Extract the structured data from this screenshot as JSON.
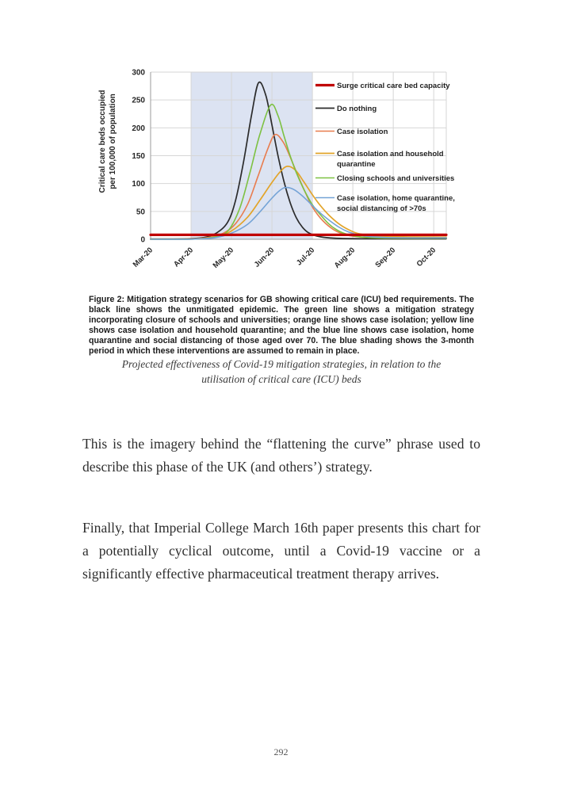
{
  "page": {
    "number": "292"
  },
  "figure_caption": "Figure 2: Mitigation strategy scenarios for GB showing critical care (ICU) bed requirements. The black line shows the unmitigated epidemic. The green line shows a mitigation strategy incorporating closure of schools and universities; orange line shows case isolation; yellow line shows case isolation and household quarantine; and the blue line shows case isolation, home quarantine and social distancing of those aged over 70. The blue shading shows the 3-month period in which these interventions are assumed to remain in place.",
  "italic_caption": {
    "line1": "Projected effectiveness of Covid-19 mitigation strategies, in relation to the",
    "line2": "utilisation of critical care (ICU) beds"
  },
  "paragraphs": {
    "p1": "This is the imagery behind the “flattening the curve” phrase used to describe this phase of the UK (and others’) strategy.",
    "p2": "Finally, that Imperial College March 16th paper presents this chart for a potentially cyclical outcome, until a Covid-19 vaccine or a significantly effective pharmaceutical treatment therapy arrives."
  },
  "chart_data": {
    "type": "line",
    "title": "",
    "ylabel_lines": [
      "Critical care beds occupied",
      "per 100,000 of population"
    ],
    "ylim": [
      0,
      300
    ],
    "y_ticks": [
      0,
      50,
      100,
      150,
      200,
      250,
      300
    ],
    "x_tick_labels": [
      "Mar-20",
      "Apr-20",
      "May-20",
      "Jun-20",
      "Jul-20",
      "Aug-20",
      "Sep-20",
      "Oct-20"
    ],
    "x_month_max": 7.31,
    "grid": true,
    "legend_position": "inside-right",
    "shading": {
      "from_month": 1,
      "to_month": 4,
      "color": "#DCE3F2"
    },
    "colors": {
      "grid": "#d6d6d6",
      "axis": "#9b9b9b",
      "tick_text": "#262626",
      "legend_text": "#1f1f1f"
    },
    "series": [
      {
        "key": "do-nothing",
        "color": "#2b2b2b",
        "line_width": 1.7,
        "legend_lines": [
          "Do nothing"
        ],
        "points": [
          [
            0,
            0.5
          ],
          [
            0.9,
            1
          ],
          [
            1.3,
            3
          ],
          [
            1.6,
            10
          ],
          [
            1.9,
            30
          ],
          [
            2.1,
            70
          ],
          [
            2.3,
            140
          ],
          [
            2.5,
            225
          ],
          [
            2.67,
            281
          ],
          [
            2.85,
            258
          ],
          [
            3.0,
            205
          ],
          [
            3.15,
            150
          ],
          [
            3.3,
            103
          ],
          [
            3.45,
            66
          ],
          [
            3.6,
            39
          ],
          [
            3.75,
            22
          ],
          [
            3.9,
            12
          ],
          [
            4.1,
            6
          ],
          [
            4.35,
            3
          ],
          [
            4.7,
            1.5
          ],
          [
            5.3,
            1
          ],
          [
            7.31,
            1
          ]
        ]
      },
      {
        "key": "case-isolation",
        "color": "#E87C4E",
        "line_width": 1.6,
        "legend_lines": [
          "Case isolation"
        ],
        "points": [
          [
            0,
            0
          ],
          [
            0.9,
            0.5
          ],
          [
            1.4,
            3
          ],
          [
            1.8,
            11
          ],
          [
            2.1,
            28
          ],
          [
            2.4,
            63
          ],
          [
            2.65,
            112
          ],
          [
            2.9,
            163
          ],
          [
            3.08,
            188
          ],
          [
            3.28,
            174
          ],
          [
            3.45,
            148
          ],
          [
            3.65,
            113
          ],
          [
            3.85,
            80
          ],
          [
            4.0,
            58
          ],
          [
            4.2,
            38
          ],
          [
            4.45,
            21
          ],
          [
            4.7,
            11
          ],
          [
            5.0,
            5.5
          ],
          [
            5.5,
            3
          ],
          [
            6.3,
            2.5
          ],
          [
            7.31,
            2.5
          ]
        ]
      },
      {
        "key": "case-isolation-household-quarantine",
        "color": "#E2A42A",
        "line_width": 1.7,
        "legend_lines": [
          "Case isolation and household",
          "quarantine"
        ],
        "points": [
          [
            0,
            0
          ],
          [
            1,
            0.3
          ],
          [
            1.6,
            4
          ],
          [
            2.0,
            15
          ],
          [
            2.4,
            40
          ],
          [
            2.7,
            70
          ],
          [
            3.0,
            102
          ],
          [
            3.2,
            121
          ],
          [
            3.38,
            131
          ],
          [
            3.58,
            124
          ],
          [
            3.78,
            104
          ],
          [
            3.98,
            82
          ],
          [
            4.18,
            62
          ],
          [
            4.4,
            44
          ],
          [
            4.65,
            28
          ],
          [
            4.9,
            17
          ],
          [
            5.15,
            10
          ],
          [
            5.55,
            6
          ],
          [
            6.1,
            4.5
          ],
          [
            7.31,
            4
          ]
        ]
      },
      {
        "key": "closing-schools-universities",
        "color": "#7DC142",
        "line_width": 1.6,
        "legend_lines": [
          "Closing schools and universities"
        ],
        "points": [
          [
            0,
            0
          ],
          [
            1,
            0.3
          ],
          [
            1.5,
            3
          ],
          [
            1.9,
            14
          ],
          [
            2.2,
            55
          ],
          [
            2.45,
            118
          ],
          [
            2.7,
            188
          ],
          [
            2.97,
            241
          ],
          [
            3.15,
            222
          ],
          [
            3.3,
            185
          ],
          [
            3.45,
            150
          ],
          [
            3.6,
            120
          ],
          [
            3.8,
            88
          ],
          [
            4.0,
            62
          ],
          [
            4.2,
            44
          ],
          [
            4.4,
            28
          ],
          [
            4.6,
            17
          ],
          [
            4.85,
            9
          ],
          [
            5.2,
            4
          ],
          [
            5.9,
            2
          ],
          [
            7.31,
            2
          ]
        ]
      },
      {
        "key": "case-isolation-home-quarantine-70s",
        "color": "#74A3D6",
        "line_width": 1.6,
        "legend_lines": [
          "Case isolation, home quarantine,",
          "social distancing of >70s"
        ],
        "points": [
          [
            0,
            0
          ],
          [
            1,
            0.2
          ],
          [
            1.6,
            3
          ],
          [
            2.0,
            11
          ],
          [
            2.4,
            27
          ],
          [
            2.7,
            49
          ],
          [
            3.0,
            74
          ],
          [
            3.2,
            88
          ],
          [
            3.35,
            93
          ],
          [
            3.55,
            89
          ],
          [
            3.75,
            78
          ],
          [
            3.95,
            64
          ],
          [
            4.15,
            50
          ],
          [
            4.4,
            35
          ],
          [
            4.65,
            22
          ],
          [
            4.9,
            13
          ],
          [
            5.2,
            7
          ],
          [
            5.6,
            4
          ],
          [
            6.2,
            2.5
          ],
          [
            7.31,
            2.5
          ]
        ]
      },
      {
        "key": "surge-capacity",
        "color": "#C00000",
        "line_width": 3.2,
        "legend_lines": [
          "Surge critical care bed capacity"
        ],
        "legend_order": 0,
        "points": [
          [
            0,
            8
          ],
          [
            7.31,
            8
          ]
        ]
      }
    ]
  }
}
